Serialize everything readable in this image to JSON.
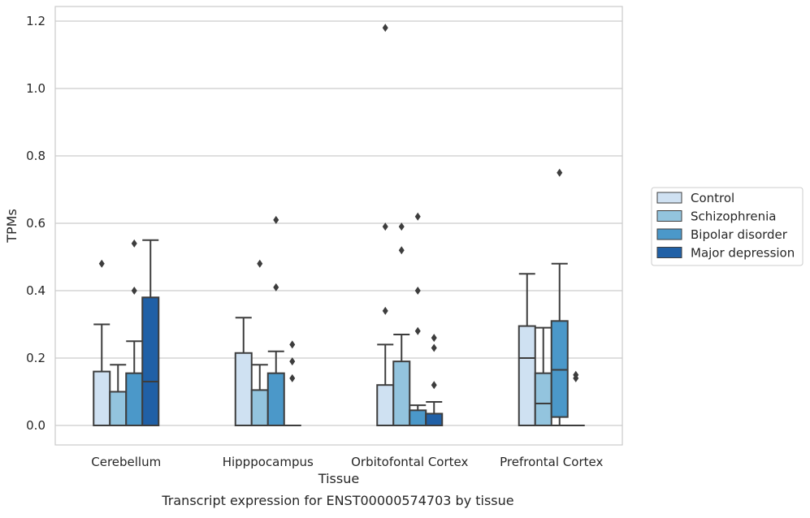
{
  "caption": "Transcript expression for ENST00000574703 by tissue",
  "chart_data": {
    "type": "box",
    "title": "",
    "xlabel": "Tissue",
    "ylabel": "TPMs",
    "ylim": [
      -0.057,
      1.24
    ],
    "yticks": [
      0.0,
      0.2,
      0.4,
      0.6,
      0.8,
      1.0,
      1.2
    ],
    "ytick_labels": [
      "0.0",
      "0.2",
      "0.4",
      "0.6",
      "0.8",
      "1.0",
      "1.2"
    ],
    "grid": "horizontal",
    "legend_position": "right",
    "categories": [
      "Cerebellum",
      "Hipppocampus",
      "Orbitofontal Cortex",
      "Prefrontal Cortex"
    ],
    "series": [
      {
        "name": "Control",
        "color": "#cfe1f2",
        "boxes": [
          {
            "q1": 0.0,
            "median": 0.0,
            "q3": 0.16,
            "whislo": 0.0,
            "whishi": 0.3,
            "fliers": [
              0.48
            ]
          },
          {
            "q1": 0.0,
            "median": 0.0,
            "q3": 0.215,
            "whislo": 0.0,
            "whishi": 0.32,
            "fliers": []
          },
          {
            "q1": 0.0,
            "median": 0.0,
            "q3": 0.12,
            "whislo": 0.0,
            "whishi": 0.24,
            "fliers": [
              0.34,
              0.59,
              1.18
            ]
          },
          {
            "q1": 0.0,
            "median": 0.2,
            "q3": 0.295,
            "whislo": 0.0,
            "whishi": 0.45,
            "fliers": []
          }
        ]
      },
      {
        "name": "Schizophrenia",
        "color": "#93c4de",
        "boxes": [
          {
            "q1": 0.0,
            "median": 0.0,
            "q3": 0.1,
            "whislo": 0.0,
            "whishi": 0.18,
            "fliers": []
          },
          {
            "q1": 0.0,
            "median": 0.0,
            "q3": 0.105,
            "whislo": 0.0,
            "whishi": 0.18,
            "fliers": [
              0.48
            ]
          },
          {
            "q1": 0.0,
            "median": 0.0,
            "q3": 0.19,
            "whislo": 0.0,
            "whishi": 0.27,
            "fliers": [
              0.52,
              0.59
            ]
          },
          {
            "q1": 0.0,
            "median": 0.065,
            "q3": 0.155,
            "whislo": 0.0,
            "whishi": 0.29,
            "fliers": []
          }
        ]
      },
      {
        "name": "Bipolar disorder",
        "color": "#4b98c9",
        "boxes": [
          {
            "q1": 0.0,
            "median": 0.0,
            "q3": 0.155,
            "whislo": 0.0,
            "whishi": 0.25,
            "fliers": [
              0.4,
              0.54
            ]
          },
          {
            "q1": 0.0,
            "median": 0.0,
            "q3": 0.155,
            "whislo": 0.0,
            "whishi": 0.22,
            "fliers": [
              0.41,
              0.61
            ]
          },
          {
            "q1": 0.0,
            "median": 0.0,
            "q3": 0.045,
            "whislo": 0.0,
            "whishi": 0.06,
            "fliers": [
              0.28,
              0.4,
              0.62
            ]
          },
          {
            "q1": 0.025,
            "median": 0.165,
            "q3": 0.31,
            "whislo": 0.0,
            "whishi": 0.48,
            "fliers": [
              0.75
            ]
          }
        ]
      },
      {
        "name": "Major depression",
        "color": "#2060a6",
        "boxes": [
          {
            "q1": 0.0,
            "median": 0.13,
            "q3": 0.38,
            "whislo": 0.0,
            "whishi": 0.55,
            "fliers": []
          },
          {
            "q1": 0.0,
            "median": 0.0,
            "q3": 0.0,
            "whislo": 0.0,
            "whishi": 0.0,
            "fliers": [
              0.14,
              0.19,
              0.24
            ]
          },
          {
            "q1": 0.0,
            "median": 0.0,
            "q3": 0.035,
            "whislo": 0.0,
            "whishi": 0.07,
            "fliers": [
              0.12,
              0.23,
              0.26
            ]
          },
          {
            "q1": 0.0,
            "median": 0.0,
            "q3": 0.0,
            "whislo": 0.0,
            "whishi": 0.0,
            "fliers": [
              0.14,
              0.15
            ]
          }
        ]
      }
    ]
  }
}
